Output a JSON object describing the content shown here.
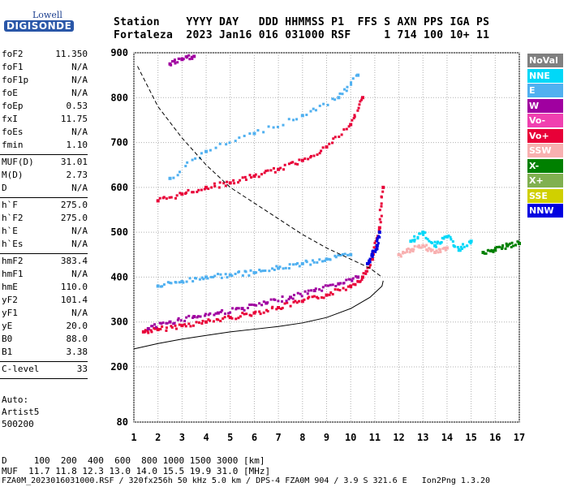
{
  "logo": {
    "line1": "Lowell",
    "line2": "DIGISONDE"
  },
  "header": {
    "row1": "Station    YYYY DAY   DDD HHMMSS P1  FFS S AXN PPS IGA PS",
    "row2": "Fortaleza  2023 Jan16 016 031000 RSF     1 714 100 10+ 11"
  },
  "params": [
    {
      "name": "foF2",
      "value": "11.350"
    },
    {
      "name": "foF1",
      "value": "N/A"
    },
    {
      "name": "foF1p",
      "value": "N/A"
    },
    {
      "name": "foE",
      "value": "N/A"
    },
    {
      "name": "foEp",
      "value": "0.53"
    },
    {
      "name": "fxI",
      "value": "11.75"
    },
    {
      "name": "foEs",
      "value": "N/A"
    },
    {
      "name": "fmin",
      "value": "1.10"
    },
    {
      "name": "MUF(D)",
      "value": "31.01"
    },
    {
      "name": "M(D)",
      "value": "2.73"
    },
    {
      "name": "D",
      "value": "N/A"
    },
    {
      "name": "h`F",
      "value": "275.0"
    },
    {
      "name": "h`F2",
      "value": "275.0"
    },
    {
      "name": "h`E",
      "value": "N/A"
    },
    {
      "name": "h`Es",
      "value": "N/A"
    },
    {
      "name": "hmF2",
      "value": "383.4"
    },
    {
      "name": "hmF1",
      "value": "N/A"
    },
    {
      "name": "hmE",
      "value": "110.0"
    },
    {
      "name": "yF2",
      "value": "101.4"
    },
    {
      "name": "yF1",
      "value": "N/A"
    },
    {
      "name": "yE",
      "value": "20.0"
    },
    {
      "name": "B0",
      "value": "88.0"
    },
    {
      "name": "B1",
      "value": "3.38"
    },
    {
      "name": "C-level",
      "value": "33"
    }
  ],
  "auto": {
    "line1": "Auto:",
    "line2": "Artist5",
    "line3": "500200"
  },
  "legend": [
    {
      "label": "NoVal",
      "color": "#808080"
    },
    {
      "label": "NNE",
      "color": "#00d8f8"
    },
    {
      "label": "E",
      "color": "#50b0f0"
    },
    {
      "label": "W",
      "color": "#a000a0"
    },
    {
      "label": "Vo-",
      "color": "#f040b0"
    },
    {
      "label": "Vo+",
      "color": "#e80038"
    },
    {
      "label": "SSW",
      "color": "#f8b0b0"
    },
    {
      "label": "X-",
      "color": "#008000"
    },
    {
      "label": "X+",
      "color": "#80b050"
    },
    {
      "label": "SSE",
      "color": "#d0d000"
    },
    {
      "label": "NNW",
      "color": "#0000e0"
    }
  ],
  "chart_data": {
    "type": "scatter",
    "xlim": [
      1,
      17
    ],
    "ylim": [
      80,
      900
    ],
    "x_ticks": [
      "1",
      "2",
      "3",
      "4",
      "5",
      "6",
      "7",
      "8",
      "9",
      "10",
      "11",
      "12",
      "13",
      "14",
      "15",
      "16",
      "17"
    ],
    "y_ticks": [
      "80",
      "200",
      "300",
      "400",
      "500",
      "600",
      "700",
      "800",
      "900"
    ],
    "grid": true,
    "series": [
      {
        "color": "#e80038",
        "points": [
          [
            1.4,
            278
          ],
          [
            2,
            283
          ],
          [
            3,
            292
          ],
          [
            4,
            300
          ],
          [
            5,
            310
          ],
          [
            6,
            320
          ],
          [
            7,
            332
          ],
          [
            8,
            346
          ],
          [
            9,
            360
          ],
          [
            10,
            380
          ],
          [
            10.5,
            400
          ],
          [
            10.9,
            440
          ],
          [
            11.2,
            510
          ],
          [
            11.35,
            600
          ]
        ]
      },
      {
        "color": "#a000a0",
        "points": [
          [
            1.6,
            285
          ],
          [
            2.5,
            300
          ],
          [
            3.5,
            312
          ],
          [
            4.5,
            320
          ],
          [
            5.5,
            330
          ],
          [
            6.5,
            342
          ],
          [
            7.5,
            355
          ],
          [
            8.5,
            370
          ],
          [
            9.5,
            385
          ],
          [
            10.3,
            400
          ]
        ]
      },
      {
        "color": "#50b0f0",
        "points": [
          [
            2,
            380
          ],
          [
            3,
            390
          ],
          [
            4,
            400
          ],
          [
            5,
            405
          ],
          [
            6,
            410
          ],
          [
            7,
            420
          ],
          [
            8,
            430
          ],
          [
            9,
            440
          ],
          [
            10,
            450
          ]
        ]
      },
      {
        "color": "#e80038",
        "points": [
          [
            2,
            570
          ],
          [
            3,
            585
          ],
          [
            4,
            600
          ],
          [
            5,
            610
          ],
          [
            6,
            625
          ],
          [
            7,
            640
          ],
          [
            8,
            660
          ],
          [
            9,
            690
          ],
          [
            10,
            740
          ],
          [
            10.5,
            800
          ]
        ]
      },
      {
        "color": "#50b0f0",
        "points": [
          [
            2.5,
            620
          ],
          [
            4,
            680
          ],
          [
            6,
            720
          ],
          [
            8,
            760
          ],
          [
            9.5,
            800
          ],
          [
            10.3,
            850
          ]
        ]
      },
      {
        "color": "#00d8f8",
        "points": [
          [
            12.5,
            480
          ],
          [
            13,
            500
          ],
          [
            13.5,
            470
          ],
          [
            14,
            490
          ],
          [
            14.5,
            460
          ],
          [
            15,
            480
          ]
        ]
      },
      {
        "color": "#f8b0b0",
        "points": [
          [
            12,
            450
          ],
          [
            12.5,
            460
          ],
          [
            13,
            470
          ],
          [
            13.5,
            455
          ],
          [
            14,
            465
          ]
        ]
      },
      {
        "color": "#a000a0",
        "points": [
          [
            2.5,
            875
          ],
          [
            3,
            885
          ],
          [
            3.5,
            892
          ]
        ]
      },
      {
        "color": "#008000",
        "points": [
          [
            15.5,
            455
          ],
          [
            16,
            460
          ],
          [
            16.5,
            470
          ],
          [
            17,
            475
          ]
        ]
      },
      {
        "color": "#0000e0",
        "points": [
          [
            10.7,
            430
          ],
          [
            10.9,
            450
          ],
          [
            11.1,
            470
          ],
          [
            11.2,
            500
          ]
        ]
      }
    ],
    "profile_solid": [
      [
        1,
        240
      ],
      [
        2,
        252
      ],
      [
        3,
        262
      ],
      [
        4,
        270
      ],
      [
        5,
        278
      ],
      [
        6,
        284
      ],
      [
        7,
        290
      ],
      [
        8,
        298
      ],
      [
        9,
        310
      ],
      [
        10,
        330
      ],
      [
        10.8,
        355
      ],
      [
        11.3,
        380
      ],
      [
        11.35,
        392
      ]
    ],
    "profile_dashed": [
      [
        1.15,
        870
      ],
      [
        2,
        780
      ],
      [
        3,
        710
      ],
      [
        4,
        650
      ],
      [
        5,
        600
      ],
      [
        6,
        565
      ],
      [
        7,
        530
      ],
      [
        8,
        495
      ],
      [
        9,
        465
      ],
      [
        10,
        440
      ],
      [
        10.8,
        420
      ],
      [
        11.3,
        400
      ]
    ]
  },
  "footer": {
    "line1": "D     100  200  400  600  800 1000 1500 3000 [km]",
    "line2": "MUF  11.7 11.8 12.3 13.0 14.0 15.5 19.9 31.0 [MHz]",
    "line3": "FZA0M_2023016031000.RSF / 320fx256h 50 kHz 5.0 km / DPS-4 FZA0M 904 / 3.9 S 321.6 E   Ion2Png 1.3.20"
  }
}
